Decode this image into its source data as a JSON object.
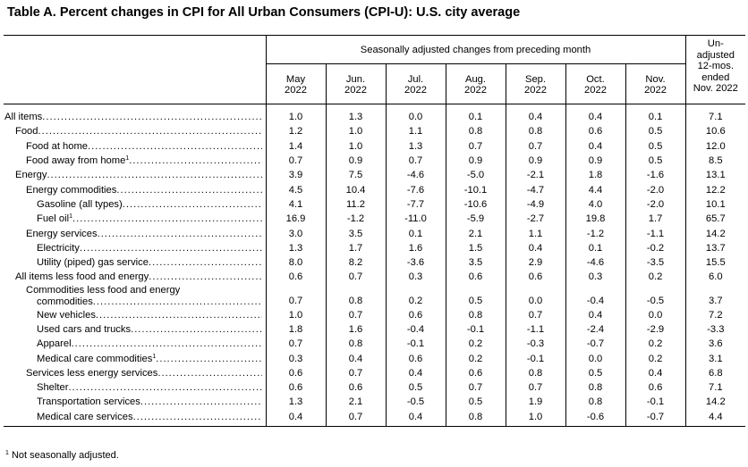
{
  "title": "Table A. Percent changes in CPI for All Urban Consumers (CPI-U): U.S. city average",
  "header": {
    "group_label": "Seasonally adjusted changes from preceding month",
    "unadjusted": [
      "Un-",
      "adjusted",
      "12-mos.",
      "ended",
      "Nov. 2022"
    ],
    "months": [
      {
        "month": "May",
        "year": "2022"
      },
      {
        "month": "Jun.",
        "year": "2022"
      },
      {
        "month": "Jul.",
        "year": "2022"
      },
      {
        "month": "Aug.",
        "year": "2022"
      },
      {
        "month": "Sep.",
        "year": "2022"
      },
      {
        "month": "Oct.",
        "year": "2022"
      },
      {
        "month": "Nov.",
        "year": "2022"
      }
    ]
  },
  "rows": [
    {
      "label": "All items",
      "indent": 0,
      "footnote": "",
      "values": [
        "1.0",
        "1.3",
        "0.0",
        "0.1",
        "0.4",
        "0.4",
        "0.1",
        "7.1"
      ]
    },
    {
      "label": "Food",
      "indent": 1,
      "footnote": "",
      "values": [
        "1.2",
        "1.0",
        "1.1",
        "0.8",
        "0.8",
        "0.6",
        "0.5",
        "10.6"
      ]
    },
    {
      "label": "Food at home",
      "indent": 2,
      "footnote": "",
      "values": [
        "1.4",
        "1.0",
        "1.3",
        "0.7",
        "0.7",
        "0.4",
        "0.5",
        "12.0"
      ]
    },
    {
      "label": "Food away from home",
      "indent": 2,
      "footnote": "1",
      "values": [
        "0.7",
        "0.9",
        "0.7",
        "0.9",
        "0.9",
        "0.9",
        "0.5",
        "8.5"
      ]
    },
    {
      "label": "Energy",
      "indent": 1,
      "footnote": "",
      "values": [
        "3.9",
        "7.5",
        "-4.6",
        "-5.0",
        "-2.1",
        "1.8",
        "-1.6",
        "13.1"
      ]
    },
    {
      "label": "Energy commodities",
      "indent": 2,
      "footnote": "",
      "values": [
        "4.5",
        "10.4",
        "-7.6",
        "-10.1",
        "-4.7",
        "4.4",
        "-2.0",
        "12.2"
      ]
    },
    {
      "label": "Gasoline (all types)",
      "indent": 3,
      "footnote": "",
      "values": [
        "4.1",
        "11.2",
        "-7.7",
        "-10.6",
        "-4.9",
        "4.0",
        "-2.0",
        "10.1"
      ]
    },
    {
      "label": "Fuel oil",
      "indent": 3,
      "footnote": "1",
      "values": [
        "16.9",
        "-1.2",
        "-11.0",
        "-5.9",
        "-2.7",
        "19.8",
        "1.7",
        "65.7"
      ]
    },
    {
      "label": "Energy services",
      "indent": 2,
      "footnote": "",
      "values": [
        "3.0",
        "3.5",
        "0.1",
        "2.1",
        "1.1",
        "-1.2",
        "-1.1",
        "14.2"
      ]
    },
    {
      "label": "Electricity",
      "indent": 3,
      "footnote": "",
      "values": [
        "1.3",
        "1.7",
        "1.6",
        "1.5",
        "0.4",
        "0.1",
        "-0.2",
        "13.7"
      ]
    },
    {
      "label": "Utility (piped) gas service",
      "indent": 3,
      "footnote": "",
      "values": [
        "8.0",
        "8.2",
        "-3.6",
        "3.5",
        "2.9",
        "-4.6",
        "-3.5",
        "15.5"
      ]
    },
    {
      "label": "All items less food and energy",
      "indent": 1,
      "footnote": "",
      "values": [
        "0.6",
        "0.7",
        "0.3",
        "0.6",
        "0.6",
        "0.3",
        "0.2",
        "6.0"
      ]
    },
    {
      "label": "Commodities less food and energy",
      "label_line2": "commodities",
      "indent": 2,
      "footnote": "",
      "values": [
        "0.7",
        "0.8",
        "0.2",
        "0.5",
        "0.0",
        "-0.4",
        "-0.5",
        "3.7"
      ]
    },
    {
      "label": "New vehicles",
      "indent": 3,
      "footnote": "",
      "values": [
        "1.0",
        "0.7",
        "0.6",
        "0.8",
        "0.7",
        "0.4",
        "0.0",
        "7.2"
      ]
    },
    {
      "label": "Used cars and trucks",
      "indent": 3,
      "footnote": "",
      "values": [
        "1.8",
        "1.6",
        "-0.4",
        "-0.1",
        "-1.1",
        "-2.4",
        "-2.9",
        "-3.3"
      ]
    },
    {
      "label": "Apparel",
      "indent": 3,
      "footnote": "",
      "values": [
        "0.7",
        "0.8",
        "-0.1",
        "0.2",
        "-0.3",
        "-0.7",
        "0.2",
        "3.6"
      ]
    },
    {
      "label": "Medical care commodities",
      "indent": 3,
      "footnote": "1",
      "values": [
        "0.3",
        "0.4",
        "0.6",
        "0.2",
        "-0.1",
        "0.0",
        "0.2",
        "3.1"
      ]
    },
    {
      "label": "Services less energy services",
      "indent": 2,
      "footnote": "",
      "values": [
        "0.6",
        "0.7",
        "0.4",
        "0.6",
        "0.8",
        "0.5",
        "0.4",
        "6.8"
      ]
    },
    {
      "label": "Shelter",
      "indent": 3,
      "footnote": "",
      "values": [
        "0.6",
        "0.6",
        "0.5",
        "0.7",
        "0.7",
        "0.8",
        "0.6",
        "7.1"
      ]
    },
    {
      "label": "Transportation services",
      "indent": 3,
      "footnote": "",
      "values": [
        "1.3",
        "2.1",
        "-0.5",
        "0.5",
        "1.9",
        "0.8",
        "-0.1",
        "14.2"
      ]
    },
    {
      "label": "Medical care services",
      "indent": 3,
      "footnote": "",
      "values": [
        "0.4",
        "0.7",
        "0.4",
        "0.8",
        "1.0",
        "-0.6",
        "-0.7",
        "4.4"
      ]
    }
  ],
  "footnote": {
    "marker": "1",
    "text": "Not seasonally adjusted."
  }
}
